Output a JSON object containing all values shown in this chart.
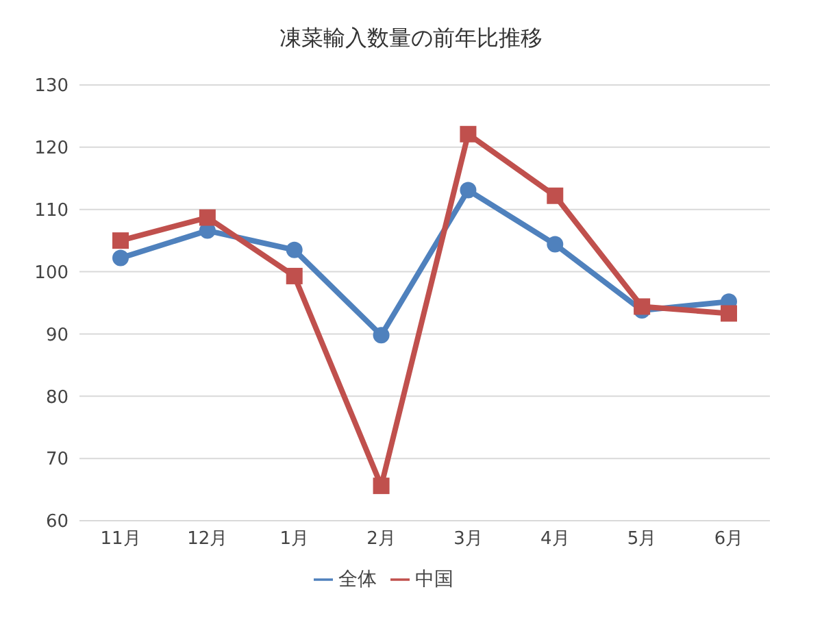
{
  "chart_data": {
    "type": "line",
    "title": "凍菜輸入数量の前年比推移",
    "categories": [
      "11月",
      "12月",
      "1月",
      "2月",
      "3月",
      "4月",
      "5月",
      "6月"
    ],
    "series": [
      {
        "name": "全体",
        "color": "#4f81bd",
        "marker": "circle",
        "values": [
          102.2,
          106.6,
          103.5,
          89.8,
          113.1,
          104.4,
          93.8,
          95.2
        ]
      },
      {
        "name": "中国",
        "color": "#c0504d",
        "marker": "square",
        "values": [
          105,
          108.7,
          99.3,
          65.6,
          122.1,
          112.2,
          94.4,
          93.3
        ]
      }
    ],
    "ylim": [
      60,
      130
    ],
    "yticks": [
      60,
      70,
      80,
      90,
      100,
      110,
      120,
      130
    ],
    "grid": "y",
    "legend": "bottom"
  }
}
